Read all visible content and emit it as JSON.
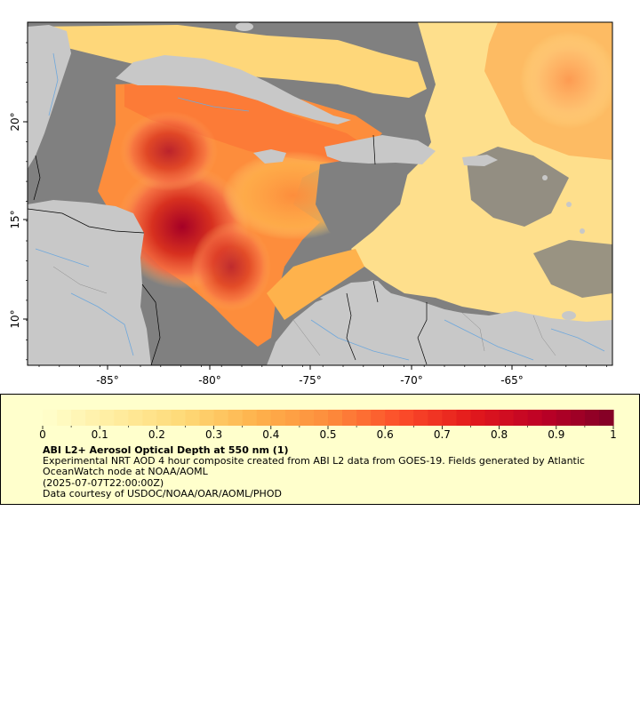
{
  "map": {
    "lon_ticks": [
      "-85°",
      "-80°",
      "-75°",
      "-70°",
      "-65°"
    ],
    "lat_ticks": [
      "20°",
      "15°",
      "10°"
    ],
    "colors": {
      "land": "#c8c8c8",
      "no_data": "#808080",
      "rivers": "#6fa8dc",
      "borders": "#000000"
    }
  },
  "colorbar": {
    "ticks": [
      "0",
      "0.1",
      "0.2",
      "0.3",
      "0.4",
      "0.5",
      "0.6",
      "0.7",
      "0.8",
      "0.9",
      "1"
    ],
    "min": 0,
    "max": 1,
    "colormap": [
      "#ffffcc",
      "#ffeda0",
      "#fed976",
      "#feb24c",
      "#fd8d3c",
      "#fc4e2a",
      "#e31a1c",
      "#bd0026",
      "#800026"
    ]
  },
  "legend": {
    "title": "ABI L2+ Aerosol Optical Depth at 550 nm (1)",
    "description": "Experimental NRT AOD 4 hour composite created from ABI L2 data from GOES-19. Fields generated by Atlantic OceanWatch node at NOAA/AOML",
    "time": "(2025-07-07T22:00:00Z)",
    "credit": "Data courtesy of USDOC/NOAA/OAR/AOML/PHOD"
  }
}
